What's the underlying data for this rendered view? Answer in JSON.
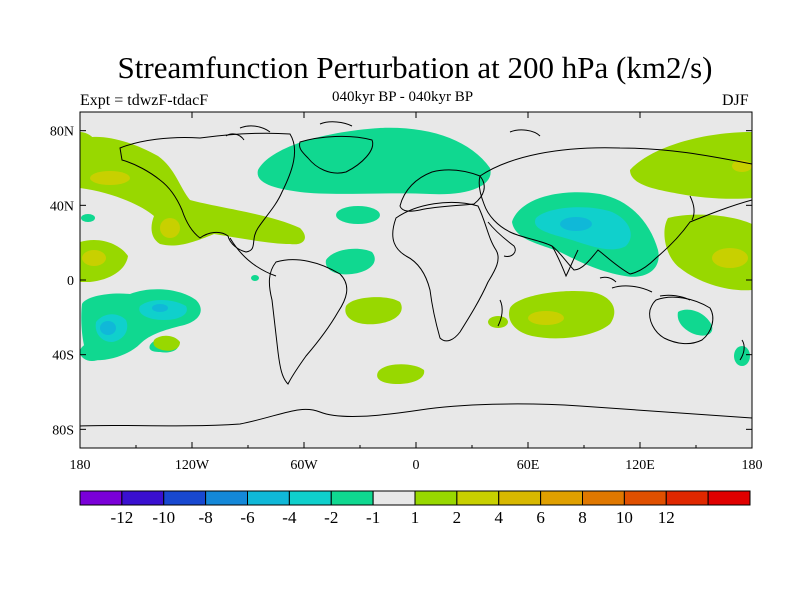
{
  "title": "Streamfunction Perturbation at 200 hPa (km2/s)",
  "subtitle_left": "Expt = tdwzF-tdacF",
  "subtitle_center": "040kyr BP - 040kyr BP",
  "subtitle_right": "DJF",
  "map": {
    "projection": "cylindrical-equidistant",
    "lon_range": [
      180,
      540
    ],
    "lat_range": [
      -90,
      90
    ],
    "background_color": "#e8e8e8",
    "x_ticks": [
      "180",
      "120W",
      "60W",
      "0",
      "60E",
      "120E",
      "180"
    ],
    "y_ticks": [
      "80N",
      "40N",
      "0",
      "40S",
      "80S"
    ]
  },
  "colorbar": {
    "colors": [
      "#7a00d8",
      "#3a10d0",
      "#1848d0",
      "#1488d8",
      "#10b8d8",
      "#10d0cc",
      "#10d890",
      "#e8e8e8",
      "#98d800",
      "#c8d000",
      "#d8b800",
      "#e0a000",
      "#e07800",
      "#e05000",
      "#e02800",
      "#e00000"
    ],
    "labels": [
      "-12",
      "-10",
      "-8",
      "-6",
      "-4",
      "-2",
      "-1",
      "1",
      "2",
      "4",
      "6",
      "8",
      "10",
      "12"
    ]
  },
  "regions": [
    {
      "label": "north-atlantic-low",
      "level": "-1",
      "color": "#10d890"
    },
    {
      "label": "tibet-low",
      "level": "-1",
      "color": "#10d890"
    },
    {
      "label": "tibet-core",
      "level": "-2",
      "color": "#10d0cc"
    },
    {
      "label": "south-pacific-low",
      "level": "-1",
      "color": "#10d890"
    },
    {
      "label": "south-pacific-core",
      "level": "-2",
      "color": "#10d0cc"
    },
    {
      "label": "north-pacific-high",
      "level": "1",
      "color": "#98d800"
    },
    {
      "label": "west-pacific-high",
      "level": "1",
      "color": "#98d800"
    },
    {
      "label": "indian-ocean-high",
      "level": "1",
      "color": "#98d800"
    },
    {
      "label": "indian-ocean-core",
      "level": "2",
      "color": "#c8d000"
    }
  ]
}
